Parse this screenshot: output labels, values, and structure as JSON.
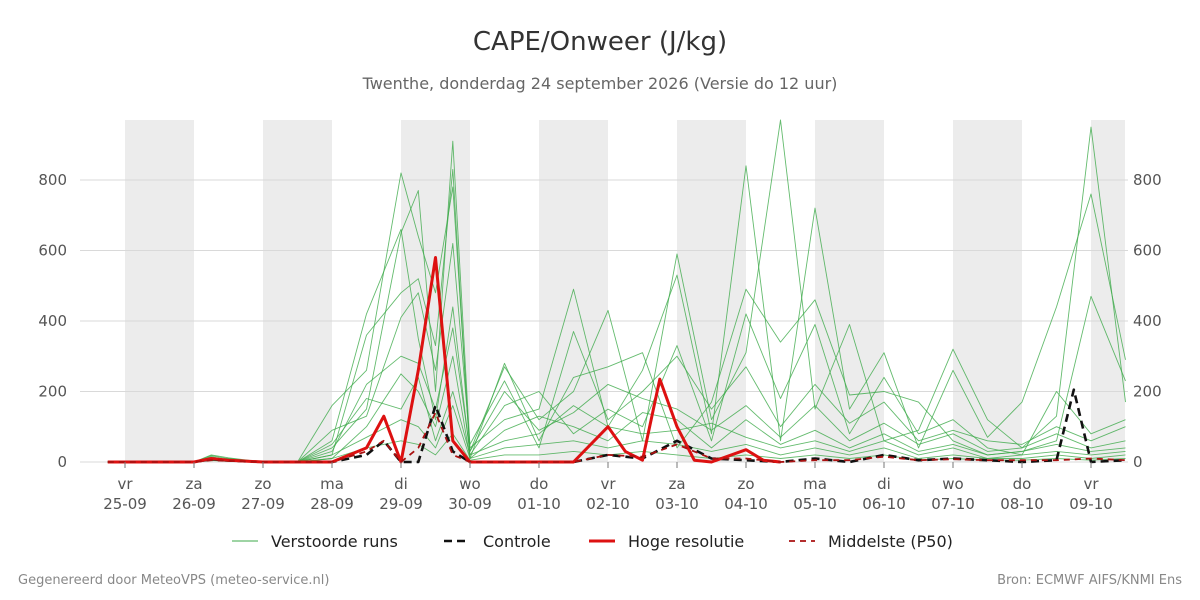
{
  "chart_data": {
    "type": "line",
    "title": "CAPE/Onweer (J/kg)",
    "subtitle": "Twenthe, donderdag 24 september 2026 (Versie do 12 uur)",
    "ylim": [
      0,
      970
    ],
    "xlim": [
      -0.25,
      14.5
    ],
    "yticks": [
      0,
      200,
      400,
      600,
      800
    ],
    "grid": true,
    "legend_position": "bottom",
    "x_ticks": [
      {
        "day": "vr",
        "date": "25-09"
      },
      {
        "day": "za",
        "date": "26-09"
      },
      {
        "day": "zo",
        "date": "27-09"
      },
      {
        "day": "ma",
        "date": "28-09"
      },
      {
        "day": "di",
        "date": "29-09"
      },
      {
        "day": "wo",
        "date": "30-09"
      },
      {
        "day": "do",
        "date": "01-10"
      },
      {
        "day": "vr",
        "date": "02-10"
      },
      {
        "day": "za",
        "date": "03-10"
      },
      {
        "day": "zo",
        "date": "04-10"
      },
      {
        "day": "ma",
        "date": "05-10"
      },
      {
        "day": "di",
        "date": "06-10"
      },
      {
        "day": "wo",
        "date": "07-10"
      },
      {
        "day": "do",
        "date": "08-10"
      },
      {
        "day": "vr",
        "date": "09-10"
      }
    ],
    "shaded_days": [
      0,
      2,
      4,
      6,
      8,
      10,
      12,
      14
    ],
    "series": [
      {
        "name": "Verstoorde runs",
        "color": "#3daa4a",
        "style": "thin",
        "members": [
          {
            "x": [
              -0.25,
              0.5,
              1.0,
              1.25,
              1.5,
              2.0,
              2.5,
              3.0,
              3.5,
              4.0,
              4.25,
              4.5,
              4.75,
              5.0,
              5.5,
              6.0,
              6.5,
              7.0,
              7.5,
              8.0,
              8.5,
              9.0,
              9.5,
              10.0,
              10.5,
              11.0,
              11.5,
              12.0,
              12.5,
              13.0,
              13.5,
              14.0,
              14.5
            ],
            "y": [
              0,
              0,
              0,
              15,
              5,
              0,
              0,
              160,
              260,
              820,
              640,
              480,
              780,
              30,
              270,
              120,
              200,
              430,
              60,
              590,
              120,
              310,
              970,
              150,
              390,
              60,
              90,
              320,
              120,
              40,
              130,
              950,
              170
            ]
          },
          {
            "x": [
              -0.25,
              0.5,
              1.0,
              1.25,
              1.5,
              2.0,
              2.5,
              3.0,
              3.5,
              4.0,
              4.25,
              4.5,
              4.75,
              5.0,
              5.5,
              6.0,
              6.5,
              7.0,
              7.5,
              8.0,
              8.5,
              9.0,
              9.5,
              10.0,
              10.5,
              11.0,
              11.5,
              12.0,
              12.5,
              13.0,
              13.5,
              14.0,
              14.5
            ],
            "y": [
              0,
              0,
              0,
              10,
              8,
              0,
              0,
              40,
              150,
              650,
              770,
              200,
              910,
              40,
              120,
              150,
              490,
              100,
              260,
              530,
              80,
              840,
              60,
              720,
              150,
              310,
              40,
              260,
              70,
              170,
              440,
              760,
              290
            ]
          },
          {
            "x": [
              -0.25,
              0.5,
              1.0,
              1.25,
              1.5,
              2.0,
              2.5,
              3.0,
              3.5,
              4.0,
              4.25,
              4.5,
              4.75,
              5.0,
              5.5,
              6.0,
              6.5,
              7.0,
              7.5,
              8.0,
              8.5,
              9.0,
              9.5,
              10.0,
              10.5,
              11.0,
              11.5,
              12.0,
              12.5,
              13.0,
              13.5,
              14.0,
              14.5
            ],
            "y": [
              0,
              0,
              0,
              20,
              12,
              0,
              0,
              20,
              360,
              480,
              520,
              330,
              830,
              10,
              280,
              60,
              240,
              270,
              310,
              40,
              170,
              490,
              340,
              460,
              190,
              200,
              170,
              60,
              20,
              30,
              60,
              470,
              230
            ]
          },
          {
            "x": [
              -0.25,
              0.5,
              1.0,
              1.25,
              1.5,
              2.0,
              2.5,
              3.0,
              3.5,
              4.0,
              4.25,
              4.5,
              4.75,
              5.0,
              5.5,
              6.0,
              6.5,
              7.0,
              7.5,
              8.0,
              8.5,
              9.0,
              9.5,
              10.0,
              10.5,
              11.0,
              11.5,
              12.0,
              12.5,
              13.0,
              13.5,
              14.0,
              14.5
            ],
            "y": [
              0,
              0,
              0,
              5,
              10,
              0,
              0,
              60,
              420,
              660,
              350,
              120,
              440,
              20,
              160,
              200,
              80,
              150,
              100,
              330,
              60,
              420,
              180,
              390,
              80,
              240,
              80,
              120,
              40,
              20,
              200,
              80,
              120
            ]
          },
          {
            "x": [
              -0.25,
              0.5,
              1.0,
              1.25,
              1.5,
              2.0,
              2.5,
              3.0,
              3.5,
              4.0,
              4.25,
              4.5,
              4.75,
              5.0,
              5.5,
              6.0,
              6.5,
              7.0,
              7.5,
              8.0,
              8.5,
              9.0,
              9.5,
              10.0,
              10.5,
              11.0,
              11.5,
              12.0,
              12.5,
              13.0,
              13.5,
              14.0,
              14.5
            ],
            "y": [
              0,
              0,
              0,
              12,
              6,
              0,
              0,
              90,
              130,
              410,
              480,
              260,
              620,
              50,
              230,
              40,
              370,
              120,
              200,
              300,
              150,
              270,
              100,
              220,
              110,
              170,
              60,
              90,
              60,
              50,
              100,
              60,
              100
            ]
          },
          {
            "x": [
              -0.25,
              0.5,
              1.0,
              1.25,
              1.5,
              2.0,
              2.5,
              3.0,
              3.5,
              4.0,
              4.25,
              4.5,
              4.75,
              5.0,
              5.5,
              6.0,
              6.5,
              7.0,
              7.5,
              8.0,
              8.5,
              9.0,
              9.5,
              10.0,
              10.5,
              11.0,
              11.5,
              12.0,
              12.5,
              13.0,
              13.5,
              14.0,
              14.5
            ],
            "y": [
              0,
              0,
              0,
              8,
              4,
              0,
              0,
              30,
              220,
              300,
              280,
              150,
              380,
              30,
              200,
              90,
              140,
              220,
              180,
              150,
              90,
              160,
              70,
              160,
              60,
              110,
              50,
              80,
              30,
              40,
              80,
              40,
              60
            ]
          },
          {
            "x": [
              -0.25,
              0.5,
              1.0,
              1.25,
              1.5,
              2.0,
              2.5,
              3.0,
              3.5,
              4.0,
              4.25,
              4.5,
              4.75,
              5.0,
              5.5,
              6.0,
              6.5,
              7.0,
              7.5,
              8.0,
              8.5,
              9.0,
              9.5,
              10.0,
              10.5,
              11.0,
              11.5,
              12.0,
              12.5,
              13.0,
              13.5,
              14.0,
              14.5
            ],
            "y": [
              0,
              0,
              0,
              18,
              9,
              0,
              0,
              10,
              100,
              250,
              200,
              100,
              300,
              10,
              90,
              130,
              100,
              60,
              140,
              120,
              40,
              120,
              50,
              90,
              40,
              80,
              30,
              50,
              20,
              30,
              50,
              30,
              40
            ]
          },
          {
            "x": [
              -0.25,
              0.5,
              1.0,
              1.25,
              1.5,
              2.0,
              2.5,
              3.0,
              3.5,
              4.0,
              4.25,
              4.5,
              4.75,
              5.0,
              5.5,
              6.0,
              6.5,
              7.0,
              7.5,
              8.0,
              8.5,
              9.0,
              9.5,
              10.0,
              10.5,
              11.0,
              11.5,
              12.0,
              12.5,
              13.0,
              13.5,
              14.0,
              14.5
            ],
            "y": [
              0,
              0,
              0,
              6,
              3,
              0,
              0,
              50,
              180,
              150,
              240,
              60,
              200,
              20,
              60,
              80,
              160,
              100,
              80,
              90,
              110,
              70,
              40,
              60,
              30,
              60,
              20,
              40,
              10,
              20,
              30,
              20,
              30
            ]
          },
          {
            "x": [
              -0.25,
              0.5,
              1.0,
              1.25,
              1.5,
              2.0,
              2.5,
              3.0,
              3.5,
              4.0,
              4.25,
              4.5,
              4.75,
              5.0,
              5.5,
              6.0,
              6.5,
              7.0,
              7.5,
              8.0,
              8.5,
              9.0,
              9.5,
              10.0,
              10.5,
              11.0,
              11.5,
              12.0,
              12.5,
              13.0,
              13.5,
              14.0,
              14.5
            ],
            "y": [
              0,
              0,
              0,
              10,
              5,
              0,
              0,
              20,
              70,
              120,
              100,
              40,
              160,
              10,
              40,
              50,
              60,
              40,
              60,
              50,
              30,
              50,
              20,
              40,
              20,
              40,
              10,
              20,
              10,
              10,
              20,
              10,
              20
            ]
          },
          {
            "x": [
              -0.25,
              0.5,
              1.0,
              1.25,
              1.5,
              2.0,
              2.5,
              3.0,
              3.5,
              4.0,
              4.25,
              4.5,
              4.75,
              5.0,
              5.5,
              6.0,
              6.5,
              7.0,
              7.5,
              8.0,
              8.5,
              9.0,
              9.5,
              10.0,
              10.5,
              11.0,
              11.5,
              12.0,
              12.5,
              13.0,
              13.5,
              14.0,
              14.5
            ],
            "y": [
              0,
              0,
              0,
              4,
              2,
              0,
              0,
              10,
              40,
              60,
              50,
              20,
              80,
              5,
              20,
              20,
              30,
              20,
              30,
              20,
              10,
              20,
              10,
              20,
              10,
              20,
              5,
              10,
              5,
              5,
              10,
              5,
              10
            ]
          }
        ]
      },
      {
        "name": "Controle",
        "color": "#111111",
        "style": "dashed",
        "x": [
          -0.25,
          0.5,
          1.0,
          1.25,
          1.5,
          2.0,
          2.5,
          3.0,
          3.5,
          3.75,
          4.0,
          4.25,
          4.5,
          4.75,
          5.0,
          5.5,
          6.0,
          6.5,
          7.0,
          7.5,
          8.0,
          8.5,
          9.0,
          9.5,
          10.0,
          10.5,
          11.0,
          11.5,
          12.0,
          12.5,
          13.0,
          13.5,
          13.75,
          14.0,
          14.5
        ],
        "y": [
          0,
          0,
          0,
          8,
          4,
          0,
          0,
          0,
          20,
          60,
          0,
          0,
          160,
          30,
          0,
          0,
          0,
          0,
          20,
          10,
          60,
          10,
          5,
          0,
          10,
          0,
          20,
          5,
          10,
          5,
          0,
          5,
          205,
          0,
          5
        ]
      },
      {
        "name": "Hoge resolutie",
        "color": "#dd1111",
        "style": "thick",
        "x": [
          -0.25,
          0.5,
          1.0,
          1.25,
          1.5,
          2.0,
          2.5,
          3.0,
          3.5,
          3.75,
          4.0,
          4.25,
          4.5,
          4.75,
          5.0,
          5.5,
          6.0,
          6.5,
          7.0,
          7.25,
          7.5,
          7.75,
          8.0,
          8.25,
          8.5,
          9.0,
          9.25,
          9.5
        ],
        "y": [
          0,
          0,
          0,
          10,
          5,
          0,
          0,
          0,
          40,
          130,
          0,
          260,
          580,
          60,
          0,
          0,
          0,
          0,
          100,
          30,
          5,
          235,
          100,
          5,
          0,
          35,
          5,
          0
        ]
      },
      {
        "name": "Middelste (P50)",
        "color": "#aa1111",
        "style": "dashed-thin",
        "x": [
          -0.25,
          0.5,
          1.0,
          1.25,
          1.5,
          2.0,
          2.5,
          3.0,
          3.5,
          3.75,
          4.0,
          4.25,
          4.5,
          4.75,
          5.0,
          5.5,
          6.0,
          6.5,
          7.0,
          7.5,
          8.0,
          8.5,
          9.0,
          9.5,
          10.0,
          10.5,
          11.0,
          11.5,
          12.0,
          12.5,
          13.0,
          13.5,
          14.0,
          14.5
        ],
        "y": [
          0,
          0,
          0,
          5,
          3,
          0,
          0,
          0,
          30,
          60,
          0,
          40,
          140,
          20,
          0,
          0,
          0,
          0,
          20,
          15,
          50,
          10,
          10,
          0,
          5,
          5,
          15,
          5,
          8,
          5,
          5,
          5,
          10,
          5
        ]
      }
    ]
  },
  "legend": [
    {
      "label": "Verstoorde runs",
      "style": "thin",
      "color": "#3daa4a"
    },
    {
      "label": "Controle",
      "style": "dashed",
      "color": "#111111"
    },
    {
      "label": "Hoge resolutie",
      "style": "thick",
      "color": "#dd1111"
    },
    {
      "label": "Middelste (P50)",
      "style": "dashed-thin",
      "color": "#aa1111"
    }
  ],
  "footer": {
    "left": "Gegenereerd door MeteoVPS (meteo-service.nl)",
    "right": "Bron: ECMWF AIFS/KNMI Ens"
  },
  "colors": {
    "shade": "#ececec",
    "grid": "#d9d9d9"
  }
}
